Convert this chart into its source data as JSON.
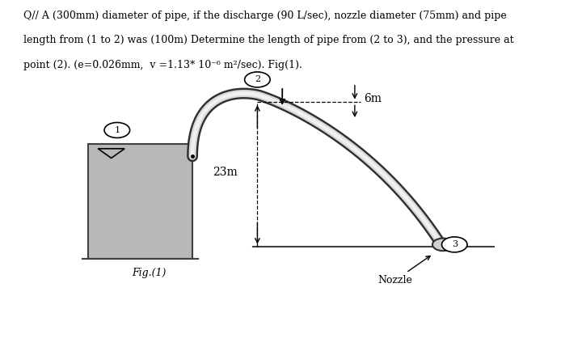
{
  "title_line1": "Q// A (300mm) diameter of pipe, if the discharge (90 L/sec), nozzle diameter (75mm) and pipe",
  "title_line2": "length from (1 to 2) was (100m) Determine the length of pipe from (2 to 3), and the pressure at",
  "title_line3": "point (2). (e=0.026mm,  v =1.13* 10⁻⁶ m²/sec). Fig(1).",
  "fig_label": "Fig.(1)",
  "nozzle_label": "Nozzle",
  "label_6m": "6m",
  "label_23m": "23m",
  "point1_label": "1",
  "point2_label": "2",
  "point3_label": "3",
  "bg_color": "#ffffff",
  "tank_color": "#b8b8b8",
  "pipe_outer_color": "#303030",
  "pipe_inner_color": "#d8d8d8",
  "pipe_center_color": "#f0f0f0",
  "ground_color": "#404040"
}
